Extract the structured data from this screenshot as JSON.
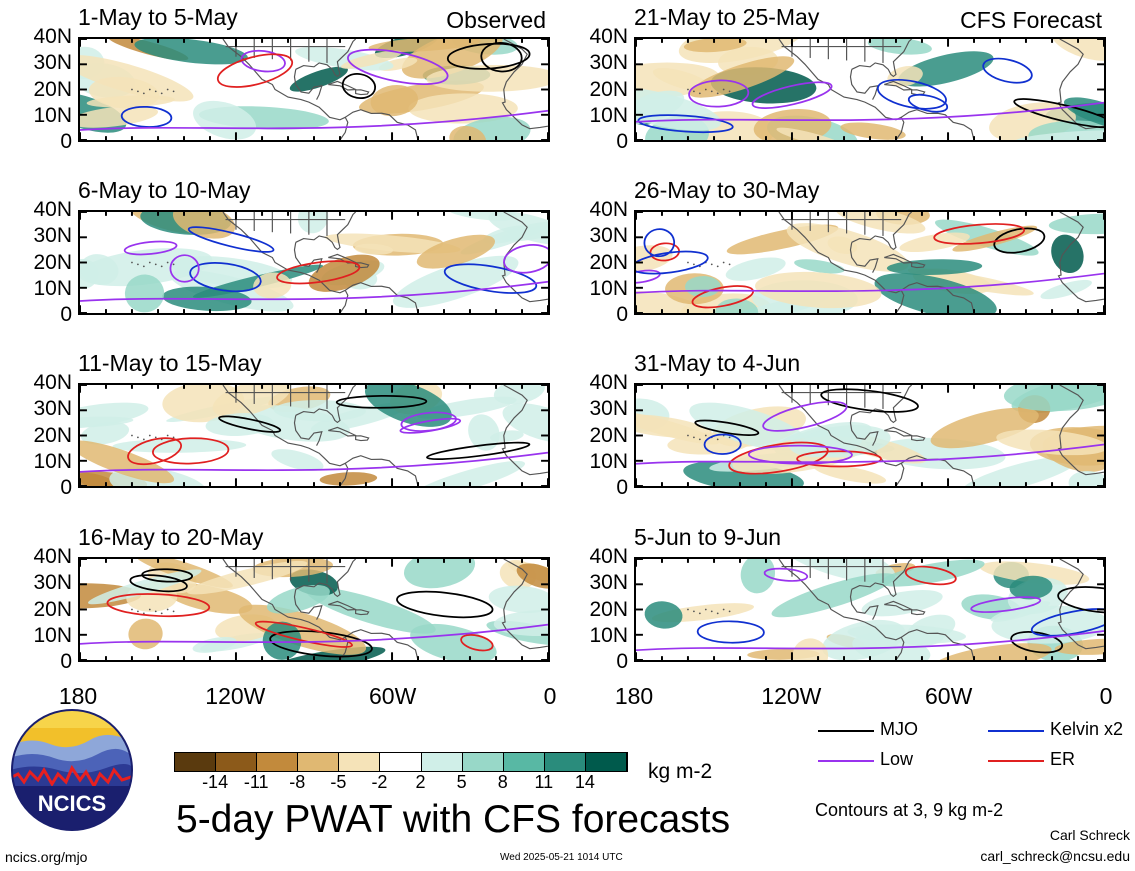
{
  "panels": [
    {
      "title": "1-May to 5-May",
      "tag": "Observed",
      "col": 0,
      "row": 0
    },
    {
      "title": "6-May to 10-May",
      "tag": "",
      "col": 0,
      "row": 1
    },
    {
      "title": "11-May to 15-May",
      "tag": "",
      "col": 0,
      "row": 2
    },
    {
      "title": "16-May to 20-May",
      "tag": "",
      "col": 0,
      "row": 3
    },
    {
      "title": "21-May to 25-May",
      "tag": "CFS Forecast",
      "col": 1,
      "row": 0
    },
    {
      "title": "26-May to 30-May",
      "tag": "",
      "col": 1,
      "row": 1
    },
    {
      "title": "31-May to 4-Jun",
      "tag": "",
      "col": 1,
      "row": 2
    },
    {
      "title": "5-Jun to 9-Jun",
      "tag": "",
      "col": 1,
      "row": 3
    }
  ],
  "y_ticks": [
    "40N",
    "30N",
    "20N",
    "10N",
    "0"
  ],
  "x_ticks": [
    "180",
    "120W",
    "60W",
    "0"
  ],
  "colorbar": {
    "colors": [
      "#5a3a0e",
      "#8c5a1a",
      "#c28a3c",
      "#e0b872",
      "#f5e3b8",
      "#ffffff",
      "#d0efe8",
      "#98d8c8",
      "#58b8a4",
      "#2a8c7c",
      "#005a4c"
    ],
    "labels": [
      "-14",
      "-11",
      "-8",
      "-5",
      "-2",
      "2",
      "5",
      "8",
      "11",
      "14"
    ],
    "unit": "kg m-2"
  },
  "legend": {
    "items": [
      {
        "label": "MJO",
        "color": "#000000"
      },
      {
        "label": "Kelvin x2",
        "color": "#1030d0"
      },
      {
        "label": "Low",
        "color": "#9933ee"
      },
      {
        "label": "ER",
        "color": "#e02020"
      }
    ],
    "note": "Contours at 3, 9 kg m-2"
  },
  "footer": {
    "title": "5-day PWAT with CFS forecasts",
    "url": "ncics.org/mjo",
    "timestamp": "Wed 2025-05-21 1014 UTC",
    "author": "Carl Schreck",
    "email": "carl_schreck@ncsu.edu",
    "logo_text": "NCICS"
  },
  "map_colors": {
    "dry_light": "#f5e3b8",
    "dry_mid": "#e0b872",
    "dry_dark": "#c28a3c",
    "wet_light": "#d0efe8",
    "wet_mid": "#98d8c8",
    "wet_dark": "#2a8c7c",
    "wet_deep": "#005a4c",
    "land_line": "#555555"
  }
}
